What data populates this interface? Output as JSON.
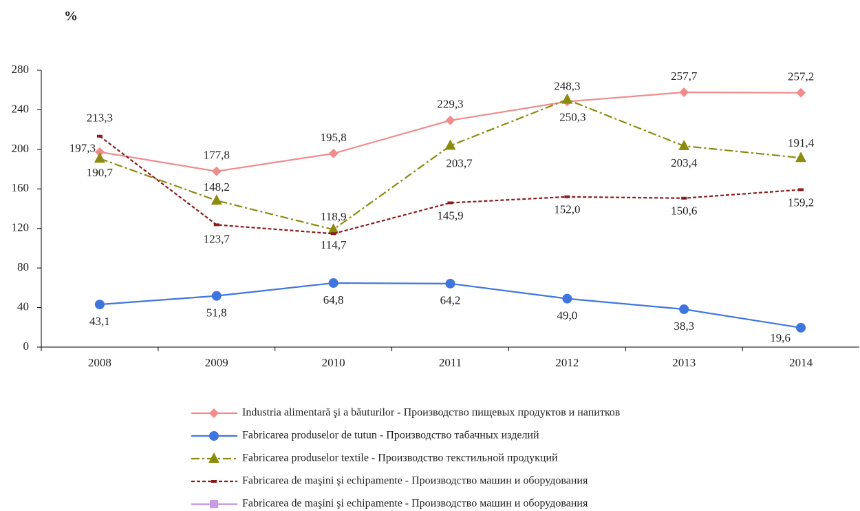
{
  "chart_data": {
    "type": "line",
    "y_label": "%",
    "categories": [
      "2008",
      "2009",
      "2010",
      "2011",
      "2012",
      "2013",
      "2014"
    ],
    "ylim": [
      0,
      280
    ],
    "yticks": [
      0,
      40,
      80,
      120,
      160,
      200,
      240,
      280
    ],
    "series": [
      {
        "name": "Industria alimentară şi a băuturilor - Производство пищевых продуктов и напитков",
        "color": "#f08c8c",
        "values": [
          197.3,
          177.8,
          195.8,
          229.3,
          248.3,
          257.7,
          257.2
        ],
        "value_labels": [
          "197,3",
          "177,8",
          "195,8",
          "229,3",
          "248,3",
          "257,7",
          "257,2"
        ]
      },
      {
        "name": "Fabricarea produselor de tutun - Производство табачных изделий",
        "color": "#3f75e0",
        "values": [
          43.1,
          51.8,
          64.8,
          64.2,
          49.0,
          38.3,
          19.6
        ],
        "value_labels": [
          "43,1",
          "51,8",
          "64,8",
          "64,2",
          "49,0",
          "38,3",
          "19,6"
        ]
      },
      {
        "name": "Fabricarea produselor textile - Производство текстильной продукций",
        "color": "#8b8b10",
        "values": [
          190.7,
          148.2,
          118.9,
          203.7,
          250.3,
          203.4,
          191.4
        ],
        "value_labels": [
          "190,7",
          "148,2",
          "118,9",
          "203,7",
          "250,3",
          "203,4",
          "191,4"
        ]
      },
      {
        "name": "Fabricarea de maşini şi echipamente - Производство машин и оборудования",
        "color": "#8b1a1a",
        "values": [
          213.3,
          123.7,
          114.7,
          145.9,
          152.0,
          150.6,
          159.2
        ],
        "value_labels": [
          "213,3",
          "123,7",
          "114,7",
          "145,9",
          "152,0",
          "150,6",
          "159,2"
        ]
      },
      {
        "name": "Fabricarea de maşini şi echipamente - Производство машин и оборудования",
        "color": "#c89be8",
        "values": [
          null,
          null,
          null,
          null,
          null,
          null,
          null
        ]
      }
    ]
  }
}
